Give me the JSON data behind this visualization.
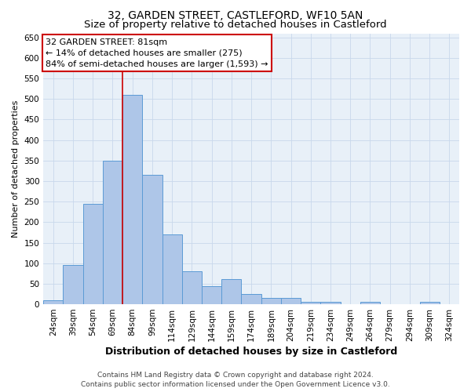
{
  "title": "32, GARDEN STREET, CASTLEFORD, WF10 5AN",
  "subtitle": "Size of property relative to detached houses in Castleford",
  "xlabel": "Distribution of detached houses by size in Castleford",
  "ylabel": "Number of detached properties",
  "footer_line1": "Contains HM Land Registry data © Crown copyright and database right 2024.",
  "footer_line2": "Contains public sector information licensed under the Open Government Licence v3.0.",
  "bin_labels": [
    "24sqm",
    "39sqm",
    "54sqm",
    "69sqm",
    "84sqm",
    "99sqm",
    "114sqm",
    "129sqm",
    "144sqm",
    "159sqm",
    "174sqm",
    "189sqm",
    "204sqm",
    "219sqm",
    "234sqm",
    "249sqm",
    "264sqm",
    "279sqm",
    "294sqm",
    "309sqm",
    "324sqm"
  ],
  "bar_heights": [
    10,
    95,
    245,
    350,
    510,
    315,
    170,
    80,
    45,
    62,
    25,
    15,
    15,
    5,
    5,
    0,
    5,
    0,
    0,
    5,
    0
  ],
  "bar_color": "#aec6e8",
  "bar_edge_color": "#5b9bd5",
  "property_size_bin_index": 4,
  "property_label": "32 GARDEN STREET: 81sqm",
  "annotation_line1": "← 14% of detached houses are smaller (275)",
  "annotation_line2": "84% of semi-detached houses are larger (1,593) →",
  "annotation_box_color": "#ffffff",
  "annotation_box_edge_color": "#cc0000",
  "vline_color": "#cc0000",
  "ylim": [
    0,
    660
  ],
  "yticks": [
    0,
    50,
    100,
    150,
    200,
    250,
    300,
    350,
    400,
    450,
    500,
    550,
    600,
    650
  ],
  "grid_color": "#c8d8ec",
  "background_color": "#e8f0f8",
  "title_fontsize": 10,
  "subtitle_fontsize": 9.5,
  "xlabel_fontsize": 9,
  "ylabel_fontsize": 8,
  "tick_fontsize": 7.5,
  "annotation_fontsize": 8,
  "footer_fontsize": 6.5
}
